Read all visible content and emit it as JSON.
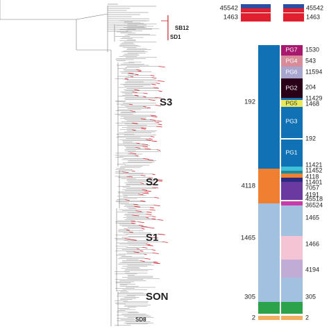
{
  "tree": {
    "labels": [
      "SB12",
      "SD1",
      "S3",
      "S2",
      "S1",
      "SON",
      "SD8"
    ]
  },
  "top": {
    "left": [
      "45542",
      "1463"
    ],
    "right": [
      "45542",
      "1463"
    ]
  },
  "st_column": {
    "labels": [
      "192",
      "4118",
      "1465",
      "305",
      "2"
    ]
  },
  "pg_column": {
    "groups": [
      "PG7",
      "PG4",
      "PG6",
      "PG2",
      "PG5",
      "PG3",
      "PG1"
    ],
    "labels": [
      "1530",
      "543",
      "11594",
      "204",
      "11429",
      "1468",
      "192",
      "11421",
      "11452",
      "4118",
      "11401",
      "7057",
      "4191",
      "45518",
      "36524",
      "1465",
      "1466",
      "4194",
      "305",
      "2"
    ]
  }
}
